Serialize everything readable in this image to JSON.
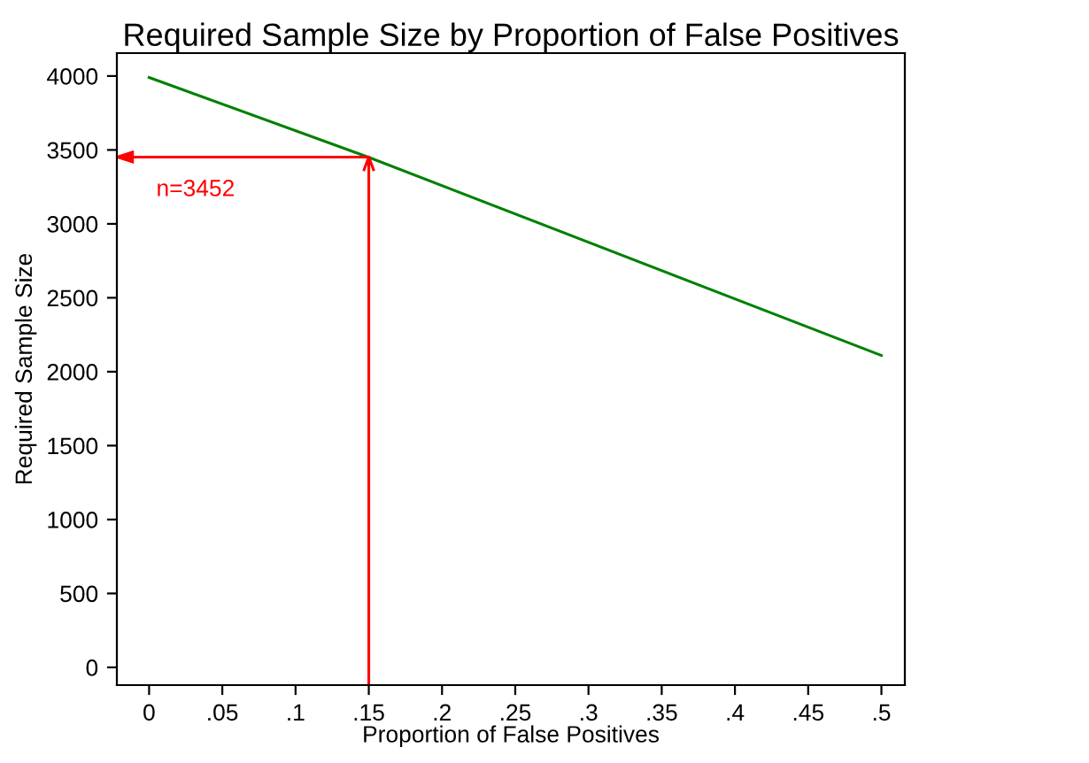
{
  "chart_data": {
    "type": "line",
    "title": "Required Sample Size by Proportion of False Positives",
    "xlabel": "Proportion of False Positives",
    "ylabel": "Required Sample Size",
    "x": [
      0,
      0.15,
      0.5
    ],
    "series": [
      {
        "color": "#008000",
        "values": [
          3990,
          3450,
          2110
        ]
      }
    ],
    "xlim": [
      -0.022,
      0.516
    ],
    "ylim": [
      -120,
      4155
    ],
    "xticks": [
      0,
      {
        "value": 0.05,
        "label": ".05"
      },
      {
        "value": 0.1,
        "label": ".1"
      },
      {
        "value": 0.15,
        "label": ".15"
      },
      {
        "value": 0.2,
        "label": ".2"
      },
      {
        "value": 0.25,
        "label": ".25"
      },
      {
        "value": 0.3,
        "label": ".3"
      },
      {
        "value": 0.35,
        "label": ".35"
      },
      {
        "value": 0.4,
        "label": ".4"
      },
      {
        "value": 0.45,
        "label": ".45"
      },
      {
        "value": 0.5,
        "label": ".5"
      }
    ],
    "yticks": [
      0,
      500,
      1000,
      1500,
      2000,
      2500,
      3000,
      3500,
      4000
    ],
    "ref_lines": [
      {
        "axis": "x",
        "value": 0.15,
        "color": "#ff0000"
      },
      {
        "axis": "y",
        "value": 3452,
        "label": "n=3452",
        "color": "#ff0000"
      }
    ],
    "grid": false,
    "legend": false,
    "marker": "none",
    "line_style": "solid"
  }
}
